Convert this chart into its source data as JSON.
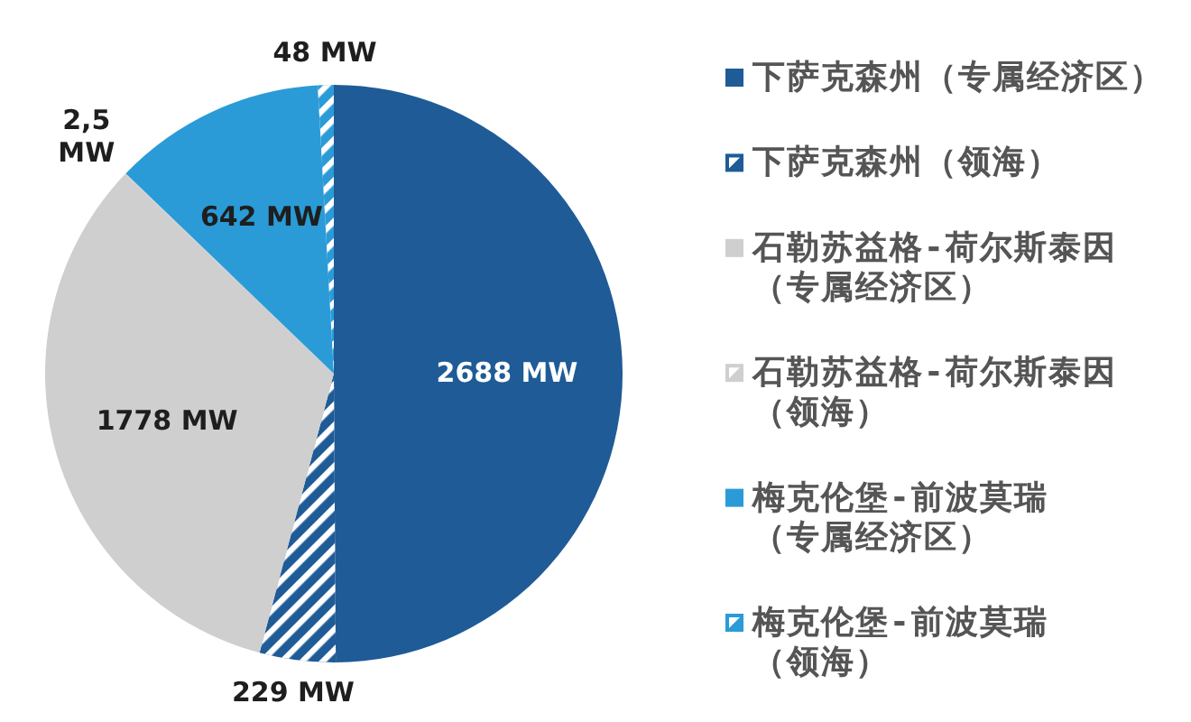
{
  "chart_data": {
    "type": "pie",
    "categories": [
      "下萨克森州（专属经济区）",
      "下萨克森州（领海）",
      "石勒苏益格-荷尔斯泰因（专属经济区）",
      "石勒苏益格-荷尔斯泰因（领海）",
      "梅克伦堡-前波莫瑞（专属经济区）",
      "梅克伦堡-前波莫瑞（领海）"
    ],
    "values": [
      2688,
      229,
      1778,
      2.5,
      642,
      48
    ],
    "colors": [
      "#1f5b96",
      "#1f5b96",
      "#cfcfcf",
      "#cfcfcf",
      "#2a9bd7",
      "#2a9bd7"
    ],
    "value_labels": [
      "2688 MW",
      "229 MW",
      "1778 MW",
      "2,5 MW",
      "642 MW",
      "48 MW"
    ],
    "legend": "right"
  }
}
